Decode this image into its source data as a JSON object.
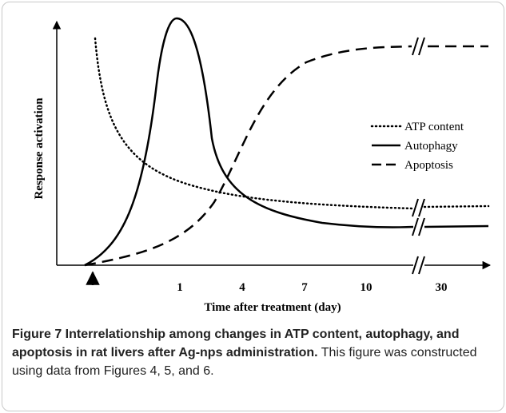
{
  "x_ticks": [
    "1",
    "4",
    "7",
    "10",
    "30"
  ],
  "x_axis_label": "Time after treatment (day)",
  "y_axis_label": "Response activation",
  "legend": [
    "ATP content",
    "Autophagy",
    "Apoptosis"
  ],
  "caption": {
    "title": "Figure 7 Interrelationship among changes in ATP content, autophagy, and apoptosis in rat livers after Ag-nps administration.",
    "text": "This figure was constructed using data from Figures 4, 5, and 6."
  }
}
